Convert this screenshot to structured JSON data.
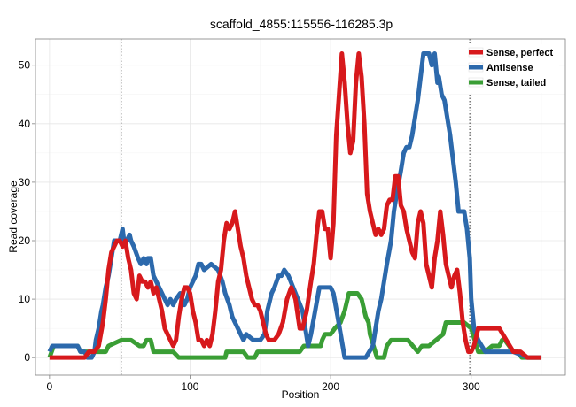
{
  "chart_data": {
    "type": "line",
    "title": "scaffold_4855:115556-116285.3p",
    "xlabel": "Position",
    "ylabel": "Read coverage",
    "xlim": [
      -10,
      367
    ],
    "ylim": [
      -3,
      54.5
    ],
    "xticks": [
      0,
      100,
      200,
      300
    ],
    "yticks": [
      0,
      10,
      20,
      30,
      40,
      50
    ],
    "vlines": [
      51,
      299
    ],
    "legend_position": "top-right",
    "series": [
      {
        "name": "Sense, tailed",
        "color": "#3a9e35",
        "x": [
          0,
          3,
          20,
          22,
          40,
          42,
          51,
          53,
          56,
          58,
          64,
          67,
          69,
          72,
          74,
          88,
          92,
          100,
          110,
          120,
          125,
          126,
          138,
          141,
          143,
          146,
          148,
          160,
          172,
          178,
          181,
          183,
          193,
          194,
          196,
          197,
          200,
          203,
          207,
          210,
          213,
          216,
          219,
          222,
          225,
          227,
          228,
          233,
          238,
          240,
          243,
          246,
          250,
          255,
          262,
          265,
          270,
          275,
          280,
          282,
          283,
          288,
          295,
          300,
          305,
          310,
          315,
          320,
          322,
          324,
          327,
          330,
          333,
          336,
          340,
          343,
          346,
          350
        ],
        "values": [
          0,
          2,
          2,
          1,
          1,
          2,
          3,
          3,
          3,
          3,
          2,
          2,
          3,
          3,
          1,
          1,
          0,
          0,
          0,
          0,
          0,
          1,
          1,
          0,
          0,
          0,
          1,
          1,
          1,
          1,
          2,
          2,
          2,
          3,
          4,
          4,
          4,
          5,
          6,
          8,
          11,
          11,
          11,
          10,
          7,
          6,
          4,
          0,
          0,
          2,
          3,
          3,
          3,
          3,
          1,
          2,
          2,
          3,
          4,
          6,
          6,
          6,
          6,
          5,
          1,
          1,
          2,
          2,
          3,
          3,
          2,
          1,
          1,
          0,
          0,
          0,
          0,
          0
        ]
      },
      {
        "name": "Antisense",
        "color": "#2c69ac",
        "x": [
          0,
          2,
          10,
          20,
          22,
          25,
          27,
          30,
          32,
          33,
          35,
          37,
          38,
          40,
          42,
          44,
          46,
          48,
          50,
          51,
          52,
          53,
          55,
          57,
          58,
          60,
          63,
          65,
          67,
          69,
          70,
          72,
          74,
          76,
          78,
          80,
          82,
          84,
          86,
          88,
          90,
          93,
          96,
          98,
          100,
          102,
          104,
          106,
          108,
          110,
          115,
          120,
          123,
          125,
          128,
          130,
          132,
          134,
          136,
          138,
          140,
          145,
          150,
          153,
          155,
          158,
          160,
          163,
          165,
          167,
          170,
          175,
          180,
          184,
          186,
          189,
          192,
          194,
          196,
          198,
          200,
          202,
          205,
          210,
          215,
          220,
          225,
          230,
          232,
          234,
          236,
          238,
          240,
          243,
          245,
          247,
          250,
          252,
          254,
          256,
          258,
          260,
          262,
          264,
          266,
          268,
          270,
          272,
          274,
          276,
          277,
          279,
          281,
          283,
          285,
          287,
          289,
          291,
          293,
          295,
          297,
          299,
          300,
          302,
          305,
          310,
          320,
          330,
          340,
          350
        ],
        "values": [
          1,
          2,
          2,
          2,
          1,
          1,
          0,
          0,
          1,
          3,
          5,
          8,
          9,
          12,
          14,
          17,
          20,
          20,
          20,
          21,
          22,
          20,
          20,
          21,
          20,
          19,
          17,
          16,
          17,
          16,
          17,
          17,
          14,
          13,
          12,
          11,
          10,
          9,
          10,
          9,
          10,
          11,
          9,
          10,
          12,
          13,
          14,
          16,
          16,
          15,
          16,
          15,
          13,
          11,
          9,
          7,
          6,
          5,
          4,
          3,
          4,
          3,
          3,
          4,
          8,
          11,
          12,
          14,
          14,
          15,
          14,
          11,
          8,
          2,
          4,
          8,
          12,
          12,
          12,
          12,
          12,
          11,
          7,
          0,
          0,
          0,
          0,
          2,
          5,
          8,
          10,
          13,
          16,
          20,
          25,
          28,
          32,
          35,
          36,
          36,
          38,
          41,
          44,
          48,
          52,
          52,
          52,
          50,
          52,
          47,
          48,
          45,
          44,
          41,
          38,
          34,
          30,
          25,
          25,
          25,
          22,
          17,
          10,
          5,
          3,
          1,
          1,
          1,
          0,
          0
        ]
      },
      {
        "name": "Sense, perfect",
        "color": "#d7191c",
        "x": [
          0,
          5,
          10,
          15,
          20,
          25,
          28,
          30,
          32,
          35,
          38,
          40,
          42,
          44,
          46,
          48,
          50,
          52,
          54,
          56,
          58,
          60,
          62,
          64,
          66,
          68,
          70,
          72,
          74,
          76,
          78,
          80,
          82,
          84,
          86,
          88,
          90,
          92,
          94,
          96,
          98,
          100,
          102,
          104,
          106,
          108,
          110,
          112,
          114,
          116,
          118,
          120,
          122,
          124,
          126,
          128,
          130,
          132,
          134,
          136,
          138,
          140,
          142,
          144,
          146,
          148,
          150,
          152,
          154,
          156,
          158,
          160,
          163,
          166,
          169,
          172,
          175,
          178,
          180,
          183,
          186,
          188,
          190,
          192,
          194,
          196,
          198,
          200,
          202,
          204,
          206,
          208,
          210,
          212,
          214,
          216,
          218,
          220,
          222,
          224,
          226,
          228,
          230,
          232,
          234,
          236,
          238,
          240,
          242,
          244,
          246,
          248,
          250,
          252,
          254,
          256,
          258,
          260,
          262,
          264,
          266,
          268,
          270,
          272,
          274,
          276,
          278,
          280,
          282,
          284,
          286,
          288,
          290,
          292,
          294,
          296,
          298,
          300,
          302,
          305,
          310,
          315,
          320,
          325,
          330,
          335,
          340,
          345,
          350
        ],
        "values": [
          0,
          0,
          0,
          0,
          0,
          0,
          1,
          1,
          1,
          2,
          6,
          10,
          15,
          18,
          19,
          20,
          20,
          19,
          20,
          17,
          15,
          11,
          10,
          14,
          13,
          13,
          12,
          13,
          11,
          12,
          10,
          8,
          5,
          4,
          3,
          2,
          3,
          7,
          10,
          12,
          12,
          11,
          8,
          6,
          3,
          3,
          2,
          3,
          2,
          4,
          8,
          13,
          15,
          20,
          23,
          22,
          23,
          25,
          22,
          19,
          17,
          14,
          12,
          10,
          9,
          9,
          8,
          6,
          4,
          3,
          3,
          3,
          4,
          6,
          10,
          12,
          10,
          5,
          5,
          8,
          13,
          16,
          21,
          25,
          25,
          22,
          22,
          17,
          23,
          38,
          45,
          52,
          47,
          40,
          35,
          37,
          47,
          52,
          48,
          40,
          28,
          25,
          23,
          21,
          22,
          21,
          22,
          26,
          27,
          27,
          31,
          31,
          26,
          25,
          22,
          20,
          18,
          17,
          23,
          25,
          23,
          16,
          14,
          12,
          17,
          20,
          25,
          21,
          16,
          14,
          12,
          14,
          15,
          11,
          6,
          3,
          1,
          1,
          2,
          5,
          5,
          5,
          5,
          3,
          1,
          1,
          0,
          0,
          0
        ]
      }
    ],
    "legend": [
      {
        "label": "Sense, perfect",
        "color": "#d7191c"
      },
      {
        "label": "Antisense",
        "color": "#2c69ac"
      },
      {
        "label": "Sense, tailed",
        "color": "#3a9e35"
      }
    ]
  }
}
